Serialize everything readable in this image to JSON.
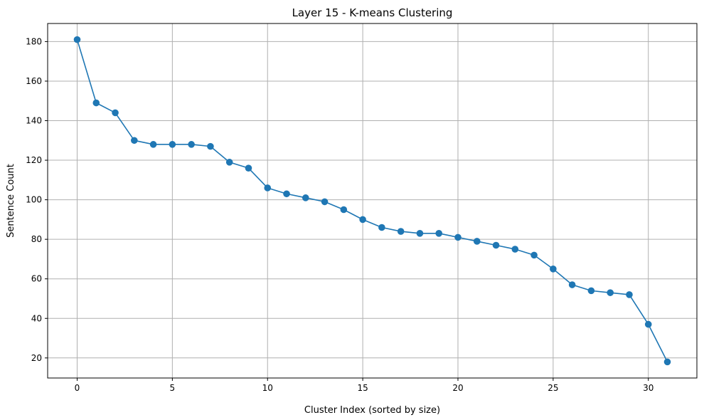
{
  "chart_data": {
    "type": "line",
    "title": "Layer 15 - K-means Clustering",
    "xlabel": "Cluster Index (sorted by size)",
    "ylabel": "Sentence Count",
    "x": [
      0,
      1,
      2,
      3,
      4,
      5,
      6,
      7,
      8,
      9,
      10,
      11,
      12,
      13,
      14,
      15,
      16,
      17,
      18,
      19,
      20,
      21,
      22,
      23,
      24,
      25,
      26,
      27,
      28,
      29,
      30,
      31
    ],
    "series": [
      {
        "values": [
          181,
          149,
          144,
          130,
          128,
          128,
          128,
          127,
          119,
          116,
          106,
          103,
          101,
          99,
          95,
          90,
          86,
          84,
          83,
          83,
          81,
          79,
          77,
          75,
          72,
          65,
          57,
          54,
          53,
          52,
          37,
          18
        ]
      }
    ],
    "xlim": [
      -1.55,
      32.55
    ],
    "ylim": [
      9.85,
      189.15
    ],
    "xticks": [
      0,
      5,
      10,
      15,
      20,
      25,
      30
    ],
    "yticks": [
      20,
      40,
      60,
      80,
      100,
      120,
      140,
      160,
      180
    ],
    "grid": true,
    "marker": "circle",
    "color": "#1f77b4",
    "grid_color": "#b0b0b0"
  }
}
